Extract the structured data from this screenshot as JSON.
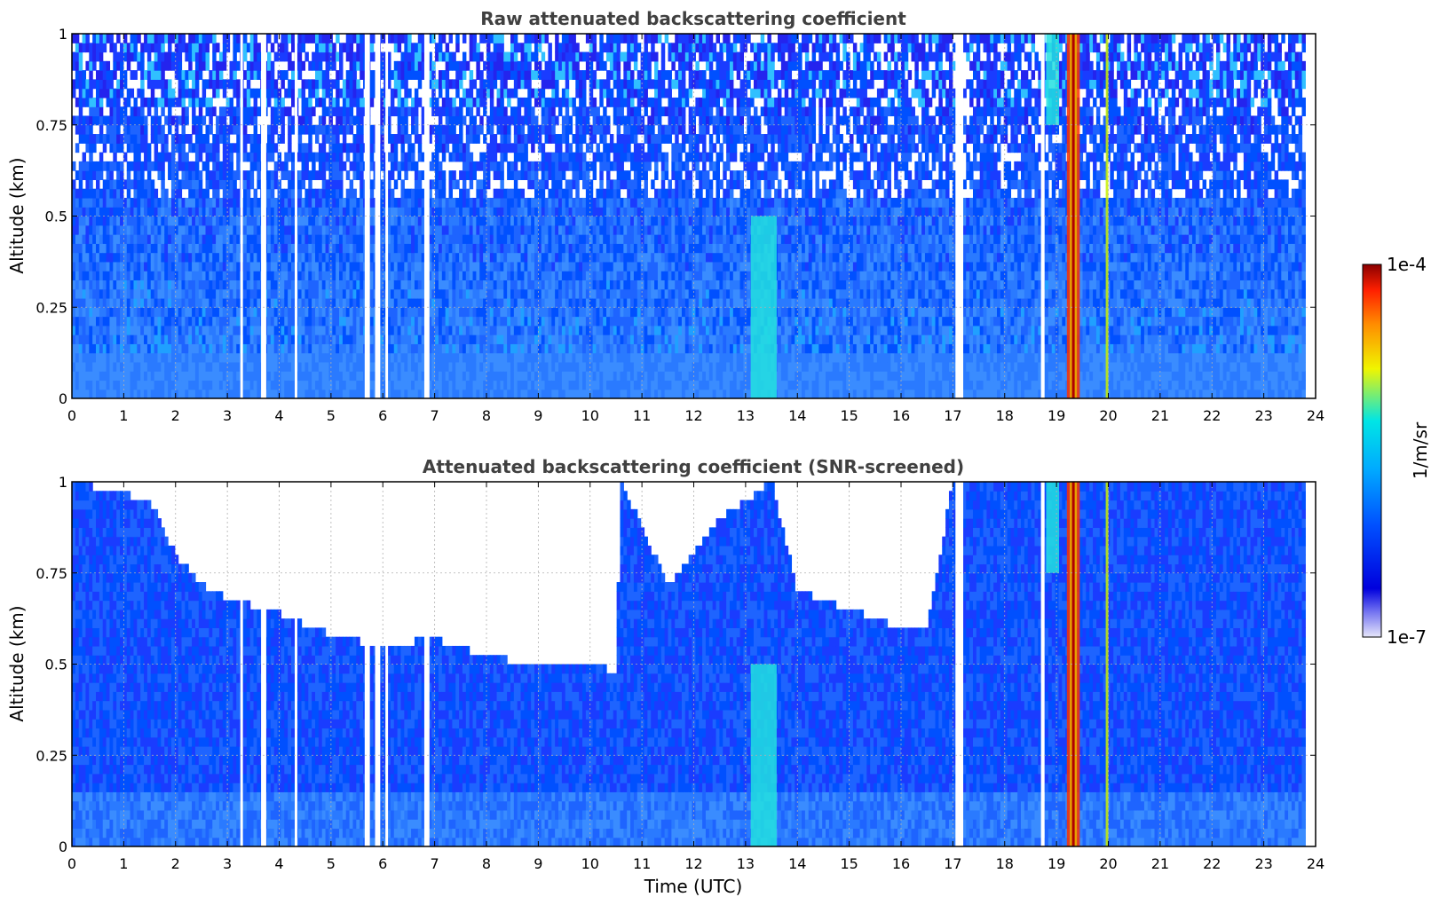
{
  "chart_data": [
    {
      "type": "heatmap",
      "title": "Raw attenuated backscattering coefficient",
      "xlabel": "",
      "ylabel": "Altitude (km)",
      "xlim": [
        0,
        24
      ],
      "ylim": [
        0,
        1
      ],
      "xticks": [
        "0",
        "1",
        "2",
        "3",
        "4",
        "5",
        "6",
        "7",
        "8",
        "9",
        "10",
        "11",
        "12",
        "13",
        "14",
        "15",
        "16",
        "17",
        "18",
        "19",
        "20",
        "21",
        "22",
        "23",
        "24"
      ],
      "yticks": [
        "0",
        "0.25",
        "0.5",
        "0.75",
        "1"
      ],
      "grid": true,
      "data_end_hour": 23.8,
      "missing_gaps_hours": [
        [
          3.25,
          3.3
        ],
        [
          3.65,
          3.75
        ],
        [
          4.3,
          4.35
        ],
        [
          5.65,
          5.75
        ],
        [
          5.85,
          5.95
        ],
        [
          6.05,
          6.1
        ],
        [
          6.8,
          6.9
        ],
        [
          17.05,
          17.2
        ],
        [
          18.7,
          18.77
        ]
      ],
      "features": [
        {
          "description": "strong backscatter layer",
          "time_range": [
            19.2,
            19.45
          ],
          "altitude_range": [
            0,
            1
          ],
          "level": "1e-4"
        },
        {
          "description": "moderate backscatter band",
          "time_range": [
            18.8,
            19.05
          ],
          "altitude_range": [
            0.75,
            1
          ],
          "level": "1e-5"
        },
        {
          "description": "moderate backscatter band",
          "time_range": [
            13.1,
            13.6
          ],
          "altitude_range": [
            0,
            0.5
          ],
          "level": "1e-5"
        },
        {
          "description": "enhanced line",
          "time_range": [
            19.95,
            20.0
          ],
          "altitude_range": [
            0,
            1
          ],
          "level": "3e-5"
        }
      ]
    },
    {
      "type": "heatmap",
      "title": "Attenuated backscattering coefficient (SNR-screened)",
      "xlabel": "Time (UTC)",
      "ylabel": "Altitude (km)",
      "xlim": [
        0,
        24
      ],
      "ylim": [
        0,
        1
      ],
      "xticks": [
        "0",
        "1",
        "2",
        "3",
        "4",
        "5",
        "6",
        "7",
        "8",
        "9",
        "10",
        "11",
        "12",
        "13",
        "14",
        "15",
        "16",
        "17",
        "18",
        "19",
        "20",
        "21",
        "22",
        "23",
        "24"
      ],
      "yticks": [
        "0",
        "0.25",
        "0.5",
        "0.75",
        "1"
      ],
      "grid": true,
      "data_end_hour": 23.8,
      "screened_ceiling_km": [
        [
          0,
          1.0
        ],
        [
          1.5,
          0.95
        ],
        [
          2.0,
          0.8
        ],
        [
          2.5,
          0.72
        ],
        [
          3.0,
          0.68
        ],
        [
          4.0,
          0.64
        ],
        [
          5.0,
          0.58
        ],
        [
          6.0,
          0.55
        ],
        [
          7.0,
          0.57
        ],
        [
          8.0,
          0.52
        ],
        [
          9.0,
          0.5
        ],
        [
          10.0,
          0.5
        ],
        [
          10.5,
          0.48
        ],
        [
          10.6,
          1.0
        ],
        [
          11.5,
          0.72
        ],
        [
          12.0,
          0.8
        ],
        [
          12.5,
          0.9
        ],
        [
          13.0,
          0.95
        ],
        [
          13.5,
          1.0
        ],
        [
          14.0,
          0.7
        ],
        [
          15.0,
          0.65
        ],
        [
          16.0,
          0.6
        ],
        [
          16.5,
          0.6
        ],
        [
          17.0,
          1.0
        ],
        [
          24.0,
          1.0
        ]
      ]
    }
  ],
  "colorbar": {
    "label": "1/m/sr",
    "max_label": "1e-4",
    "min_label": "1e-7",
    "colors": [
      "#e6e6fa",
      "#0000cd",
      "#0050ff",
      "#00aaff",
      "#00e5e5",
      "#f5f500",
      "#ff8c00",
      "#ff2000",
      "#8b0000"
    ]
  }
}
